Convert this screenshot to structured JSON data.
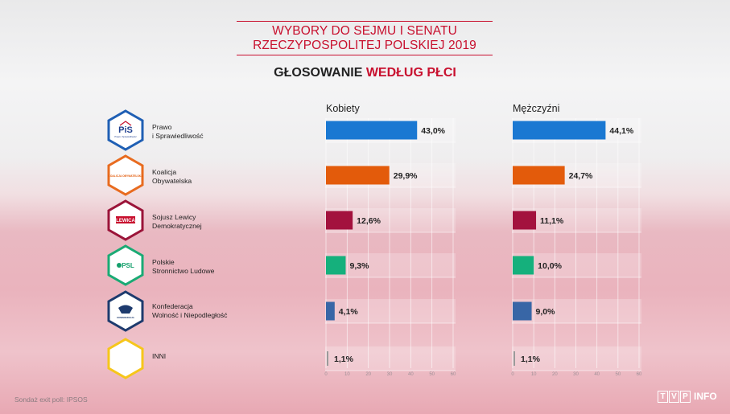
{
  "title": {
    "line1": "WYBORY DO SEJMU I SENATU",
    "line2": "RZECZYPOSPOLITEJ POLSKIEJ 2019"
  },
  "subtitle": {
    "part1": "GŁOSOWANIE ",
    "part2": "WEDŁUG PŁCI"
  },
  "columns": {
    "women": "Kobiety",
    "men": "Mężczyźni"
  },
  "parties": [
    {
      "line1": "Prawo",
      "line2": "i Sprawiedliwość",
      "logo_text": "PiS",
      "logo_sub": "Prawo i Sprawiedliwość",
      "hex_color": "#1f5fb4",
      "bar_color": "#1a78d2"
    },
    {
      "line1": "Koalicja",
      "line2": "Obywatelska",
      "logo_text": "KOALICJA OBYWATELSKA",
      "hex_color": "#e86b1f",
      "bar_color": "#e35b0b"
    },
    {
      "line1": "Sojusz Lewicy",
      "line2": "Demokratycznej",
      "logo_text": "LEWICA",
      "hex_color": "#9b1439",
      "bar_color": "#a3123e"
    },
    {
      "line1": "Polskie",
      "line2": "Stronnictwo Ludowe",
      "logo_text": "PSL",
      "hex_color": "#1aaa74",
      "bar_color": "#15b07c"
    },
    {
      "line1": "Konfederacja",
      "line2": "Wolność i Niepodległość",
      "logo_text": "KONFEDERACJA",
      "hex_color": "#1e3b6e",
      "bar_color": "#3866a6"
    },
    {
      "line1": "INNI",
      "line2": "",
      "logo_text": "",
      "hex_color": "#f6c61b",
      "bar_color": "#9a9a9a"
    }
  ],
  "chart_data": {
    "type": "bar",
    "orientation": "horizontal",
    "title": "WYBORY DO SEJMU I SENATU RZECZYPOSPOLITEJ POLSKIEJ 2019",
    "subtitle": "GŁOSOWANIE WEDŁUG PŁCI",
    "categories": [
      "Prawo i Sprawiedliwość",
      "Koalicja Obywatelska",
      "Sojusz Lewicy Demokratycznej",
      "Polskie Stronnictwo Ludowe",
      "Konfederacja Wolność i Niepodległość",
      "INNI"
    ],
    "series": [
      {
        "name": "Kobiety",
        "values": [
          43.0,
          29.9,
          12.6,
          9.3,
          4.1,
          1.1
        ],
        "labels": [
          "43,0%",
          "29,9%",
          "12,6%",
          "9,3%",
          "4,1%",
          "1,1%"
        ]
      },
      {
        "name": "Mężczyźni",
        "values": [
          44.1,
          24.7,
          11.1,
          10.0,
          9.0,
          1.1
        ],
        "labels": [
          "44,1%",
          "24,7%",
          "11,1%",
          "10,0%",
          "9,0%",
          "1,1%"
        ]
      }
    ],
    "xlim": [
      0,
      60
    ],
    "ticks": [
      0,
      10,
      20,
      30,
      40,
      50,
      60
    ],
    "grid": true
  },
  "footer": {
    "source": "Sondaż exit poll: IPSOS",
    "logo_letters": [
      "T",
      "V",
      "P"
    ],
    "logo_info": "INFO"
  }
}
